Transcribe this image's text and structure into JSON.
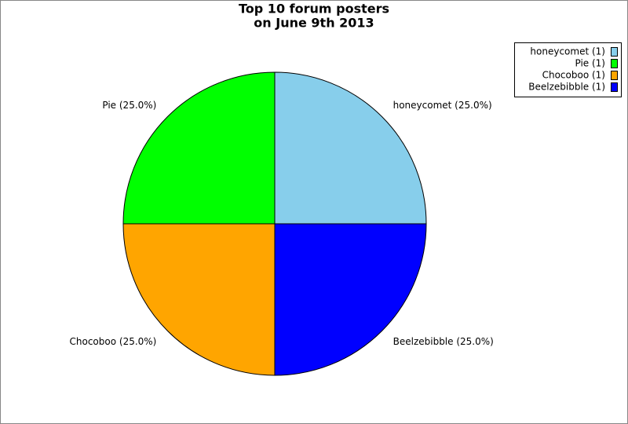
{
  "chart_data": {
    "type": "pie",
    "title": "Top 10 forum posters",
    "subtitle": "on June 9th 2013",
    "categories": [
      "honeycomet",
      "Pie",
      "Chocoboo",
      "Beelzebibble"
    ],
    "values": [
      1,
      1,
      1,
      1
    ],
    "value_labels": [
      "honeycomet (1)",
      "Pie (1)",
      "Chocoboo (1)",
      "Beelzebibble (1)"
    ],
    "slice_labels": [
      "honeycomet (25.0%)",
      "Pie (25.0%)",
      "Chocoboo (25.0%)",
      "Beelzebibble (25.0%)"
    ],
    "colors": [
      "#87ceeb",
      "#00ff00",
      "#ffa500",
      "#0000ff"
    ],
    "legend": "upper right"
  }
}
